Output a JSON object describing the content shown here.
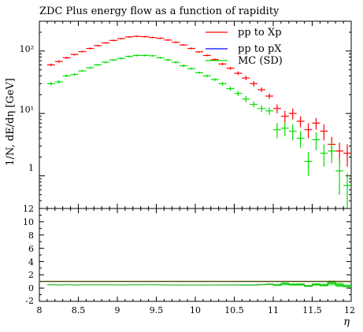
{
  "chart_data": {
    "type": "scatter",
    "title": "ZDC Plus energy flow as a function of rapidity",
    "ylabel": "1/N, dE/dη [GeV]",
    "xlabel": "η",
    "xlim": [
      8,
      12
    ],
    "ylim_main": [
      0.3,
      300
    ],
    "yscale_main": "log",
    "ylim_ratio": [
      -2,
      12
    ],
    "x_ticks": [
      "8",
      "8.5",
      "9",
      "9.5",
      "10",
      "10.5",
      "11",
      "11.5",
      "12"
    ],
    "y_ticks_main": [
      "10²",
      "10¹",
      "1"
    ],
    "y_ticks_ratio": [
      "12",
      "10",
      "8",
      "6",
      "4",
      "2",
      "0",
      "-2"
    ],
    "legend_position": "top-right",
    "series": [
      {
        "name": "pp to Xp",
        "color": "#ff0000",
        "points": [
          [
            8.15,
            60,
            3
          ],
          [
            8.25,
            68,
            3
          ],
          [
            8.35,
            78,
            3
          ],
          [
            8.45,
            88,
            3
          ],
          [
            8.55,
            98,
            3
          ],
          [
            8.65,
            110,
            4
          ],
          [
            8.75,
            122,
            4
          ],
          [
            8.85,
            135,
            4
          ],
          [
            8.95,
            148,
            4
          ],
          [
            9.05,
            158,
            5
          ],
          [
            9.15,
            168,
            5
          ],
          [
            9.25,
            172,
            5
          ],
          [
            9.35,
            170,
            5
          ],
          [
            9.45,
            165,
            5
          ],
          [
            9.55,
            160,
            5
          ],
          [
            9.65,
            150,
            5
          ],
          [
            9.75,
            138,
            4
          ],
          [
            9.85,
            125,
            4
          ],
          [
            9.95,
            110,
            4
          ],
          [
            10.05,
            97,
            3
          ],
          [
            10.15,
            85,
            3
          ],
          [
            10.25,
            73,
            3
          ],
          [
            10.35,
            62,
            3
          ],
          [
            10.45,
            53,
            3
          ],
          [
            10.55,
            44,
            3
          ],
          [
            10.65,
            37,
            3
          ],
          [
            10.75,
            30,
            3
          ],
          [
            10.85,
            24,
            2
          ],
          [
            10.95,
            19,
            2
          ],
          [
            11.05,
            12,
            2
          ],
          [
            11.15,
            9,
            2
          ],
          [
            11.25,
            10,
            2
          ],
          [
            11.35,
            7.5,
            1.5
          ],
          [
            11.45,
            5.5,
            1.5
          ],
          [
            11.55,
            7,
            1.5
          ],
          [
            11.65,
            5.2,
            1.5
          ],
          [
            11.75,
            3.2,
            1
          ],
          [
            11.85,
            2.5,
            0.9
          ],
          [
            11.95,
            2.3,
            0.9
          ]
        ]
      },
      {
        "name": "pp to pX",
        "color": "#0000ff",
        "points": []
      },
      {
        "name": "MC (SD)",
        "color": "#00dd00",
        "points": [
          [
            8.15,
            30,
            2
          ],
          [
            8.25,
            32,
            2
          ],
          [
            8.35,
            40,
            2
          ],
          [
            8.45,
            42,
            2
          ],
          [
            8.55,
            48,
            2
          ],
          [
            8.65,
            54,
            2
          ],
          [
            8.75,
            60,
            2
          ],
          [
            8.85,
            66,
            3
          ],
          [
            8.95,
            72,
            3
          ],
          [
            9.05,
            76,
            3
          ],
          [
            9.15,
            82,
            3
          ],
          [
            9.25,
            85,
            3
          ],
          [
            9.35,
            85,
            3
          ],
          [
            9.45,
            84,
            3
          ],
          [
            9.55,
            78,
            3
          ],
          [
            9.65,
            72,
            3
          ],
          [
            9.75,
            66,
            3
          ],
          [
            9.85,
            58,
            3
          ],
          [
            9.95,
            52,
            2
          ],
          [
            10.05,
            45,
            2
          ],
          [
            10.15,
            40,
            2
          ],
          [
            10.25,
            35,
            2
          ],
          [
            10.35,
            30,
            2
          ],
          [
            10.45,
            25,
            2
          ],
          [
            10.55,
            21,
            2
          ],
          [
            10.65,
            17,
            2
          ],
          [
            10.75,
            14,
            1.5
          ],
          [
            10.85,
            12,
            1.5
          ],
          [
            10.95,
            11,
            1.5
          ],
          [
            11.05,
            5.5,
            1.5
          ],
          [
            11.15,
            5.8,
            1.5
          ],
          [
            11.25,
            5.2,
            1.5
          ],
          [
            11.35,
            4,
            1.2
          ],
          [
            11.45,
            1.7,
            0.7
          ],
          [
            11.55,
            3.8,
            1.2
          ],
          [
            11.65,
            2.3,
            0.9
          ],
          [
            11.75,
            2.5,
            0.9
          ],
          [
            11.85,
            1.2,
            0.7
          ],
          [
            11.95,
            0.7,
            0.4
          ]
        ]
      }
    ]
  }
}
